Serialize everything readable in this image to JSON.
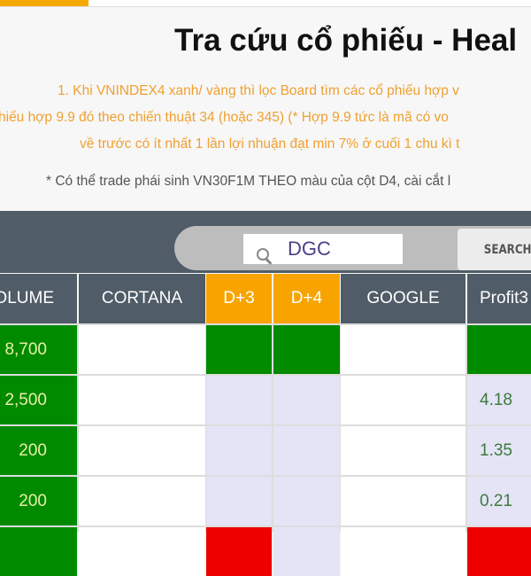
{
  "header": {
    "title": "Tra cứu cổ phiếu - Heal"
  },
  "notes": [
    "1. Khi VNINDEX4 xanh/ vàng thì lọc Board tìm các cổ phiếu hợp v",
    "hiếu hợp 9.9 đó theo chiến thuật 34 (hoặc 345) (* Hợp 9.9 tức là mã có vo",
    "về trước có ít nhất 1 lần lợi nhuận đạt min 7% ở cuối 1 chu kì t",
    "* Có thể trade phái sinh VN30F1M THEO màu của cột D4, cài cắt l"
  ],
  "search": {
    "value": "DGC",
    "button_label": "SEARCH",
    "icon": "search-icon"
  },
  "table": {
    "columns": [
      "OLUME",
      "CORTANA",
      "D+3",
      "D+4",
      "GOOGLE",
      "Profit3"
    ],
    "rows": [
      {
        "volume": "8,700",
        "d3": "green",
        "d4": "green",
        "profit": "",
        "profit_color": "green"
      },
      {
        "volume": "2,500",
        "d3": "lavender",
        "d4": "lavender",
        "profit": "4.18",
        "profit_color": "lavender"
      },
      {
        "volume": "200",
        "d3": "lavender",
        "d4": "lavender",
        "profit": "1.35",
        "profit_color": "lavender"
      },
      {
        "volume": "200",
        "d3": "lavender",
        "d4": "lavender",
        "profit": "0.21",
        "profit_color": "lavender"
      },
      {
        "volume": "",
        "d3": "red",
        "d4": "lavender",
        "profit": "",
        "profit_color": "red"
      }
    ]
  },
  "colors": {
    "accent": "#f5a800",
    "header_bg": "#505c67",
    "green": "#008a00",
    "red": "#ee0000",
    "lavender": "#e4e4f6"
  }
}
